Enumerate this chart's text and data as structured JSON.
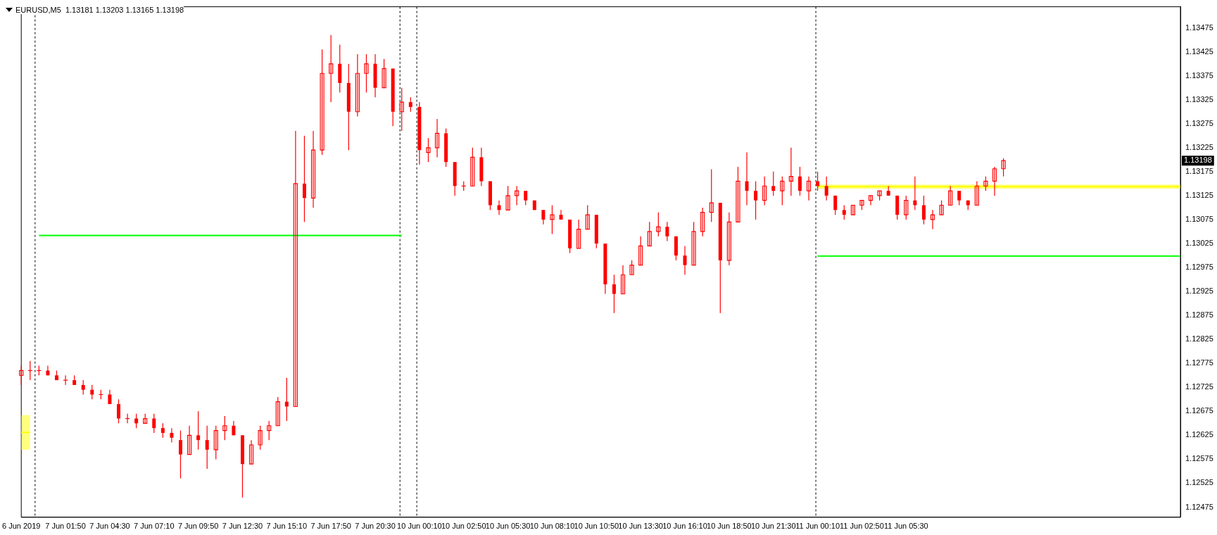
{
  "chart_data": {
    "type": "candlestick",
    "title": "EURUSD,M5  1.13181 1.13203 1.13165 1.13198",
    "color": "#ff0000",
    "categories": [
      "6 Jun 2019",
      null,
      null,
      null,
      null,
      "7 Jun 01:50",
      null,
      null,
      null,
      null,
      "7 Jun 04:30",
      null,
      null,
      null,
      null,
      "7 Jun 07:10",
      null,
      null,
      null,
      null,
      "7 Jun 09:50",
      null,
      null,
      null,
      null,
      "7 Jun 12:30",
      null,
      null,
      null,
      null,
      "7 Jun 15:10",
      null,
      null,
      null,
      null,
      "7 Jun 17:50",
      null,
      null,
      null,
      null,
      "7 Jun 20:30",
      null,
      null,
      null,
      null,
      "10 Jun 00:10",
      null,
      null,
      null,
      null,
      "10 Jun 02:50",
      null,
      null,
      null,
      null,
      "10 Jun 05:30",
      null,
      null,
      null,
      null,
      "10 Jun 08:10",
      null,
      null,
      null,
      null,
      "10 Jun 10:50",
      null,
      null,
      null,
      null,
      "10 Jun 13:30",
      null,
      null,
      null,
      null,
      "10 Jun 16:10",
      null,
      null,
      null,
      null,
      "10 Jun 18:50",
      null,
      null,
      null,
      null,
      "10 Jun 21:30",
      null,
      null,
      null,
      null,
      "11 Jun 00:10",
      null,
      null,
      null,
      null,
      "11 Jun 02:50",
      null,
      null,
      null,
      null,
      "11 Jun 05:30",
      null,
      null,
      null,
      null,
      null,
      null,
      null,
      null,
      null,
      null,
      null,
      null,
      null,
      null,
      null,
      null,
      null,
      null,
      null,
      null,
      null,
      null,
      null,
      null,
      null,
      null,
      null,
      null,
      null,
      null,
      null
    ],
    "ohlc": [
      [
        1.1275,
        1.1277,
        1.1273,
        1.1276
      ],
      [
        1.1276,
        1.1278,
        1.1274,
        1.1276
      ],
      [
        1.1276,
        1.1277,
        1.1275,
        1.1276
      ],
      [
        1.1276,
        1.1277,
        1.1275,
        1.1275
      ],
      [
        1.1275,
        1.1276,
        1.1274,
        1.1274
      ],
      [
        1.1274,
        1.1275,
        1.1273,
        1.1274
      ],
      [
        1.1274,
        1.1275,
        1.1273,
        1.1273
      ],
      [
        1.1273,
        1.1274,
        1.1271,
        1.1272
      ],
      [
        1.1272,
        1.1273,
        1.127,
        1.1271
      ],
      [
        1.1271,
        1.1272,
        1.127,
        1.1271
      ],
      [
        1.1271,
        1.1272,
        1.1269,
        1.1269
      ],
      [
        1.1269,
        1.127,
        1.1265,
        1.1266
      ],
      [
        1.1266,
        1.1267,
        1.1265,
        1.1266
      ],
      [
        1.1266,
        1.1267,
        1.1264,
        1.1265
      ],
      [
        1.1265,
        1.1267,
        1.1265,
        1.1266
      ],
      [
        1.1266,
        1.1267,
        1.1263,
        1.1264
      ],
      [
        1.1264,
        1.1265,
        1.1262,
        1.1263
      ],
      [
        1.1263,
        1.1264,
        1.1261,
        1.1262
      ],
      [
        1.12615,
        1.12635,
        1.12535,
        1.12585
      ],
      [
        1.12585,
        1.12645,
        1.12585,
        1.12625
      ],
      [
        1.12625,
        1.12675,
        1.12595,
        1.12615
      ],
      [
        1.12615,
        1.12645,
        1.12555,
        1.12595
      ],
      [
        1.12595,
        1.12645,
        1.12575,
        1.12635
      ],
      [
        1.12635,
        1.12665,
        1.12615,
        1.12645
      ],
      [
        1.12645,
        1.12655,
        1.12625,
        1.12625
      ],
      [
        1.12625,
        1.12625,
        1.12495,
        1.12565
      ],
      [
        1.12565,
        1.12615,
        1.12565,
        1.12605
      ],
      [
        1.12605,
        1.12645,
        1.12595,
        1.12635
      ],
      [
        1.12635,
        1.12655,
        1.12615,
        1.12645
      ],
      [
        1.12645,
        1.12705,
        1.12645,
        1.12695
      ],
      [
        1.12695,
        1.12745,
        1.12655,
        1.12685
      ],
      [
        1.12685,
        1.1326,
        1.12685,
        1.1315
      ],
      [
        1.1315,
        1.1325,
        1.1307,
        1.1312
      ],
      [
        1.1312,
        1.1326,
        1.131,
        1.1322
      ],
      [
        1.1322,
        1.1343,
        1.1321,
        1.1338
      ],
      [
        1.1338,
        1.1346,
        1.1332,
        1.134
      ],
      [
        1.134,
        1.1344,
        1.1334,
        1.1336
      ],
      [
        1.1336,
        1.134,
        1.1322,
        1.133
      ],
      [
        1.133,
        1.1342,
        1.1329,
        1.1338
      ],
      [
        1.1338,
        1.1342,
        1.1334,
        1.134
      ],
      [
        1.134,
        1.1342,
        1.1333,
        1.1335
      ],
      [
        1.1335,
        1.1341,
        1.1335,
        1.1339
      ],
      [
        1.1339,
        1.1339,
        1.1327,
        1.133
      ],
      [
        1.133,
        1.1335,
        1.1326,
        1.1332
      ],
      [
        1.1332,
        1.1333,
        1.133,
        1.1331
      ],
      [
        1.1331,
        1.1332,
        1.1319,
        1.1322
      ],
      [
        1.13215,
        1.13245,
        1.13195,
        1.13225
      ],
      [
        1.13225,
        1.13285,
        1.13205,
        1.13255
      ],
      [
        1.13255,
        1.13265,
        1.13185,
        1.13195
      ],
      [
        1.13195,
        1.13195,
        1.13125,
        1.13145
      ],
      [
        1.13145,
        1.13155,
        1.13135,
        1.13145
      ],
      [
        1.13145,
        1.13225,
        1.13145,
        1.13205
      ],
      [
        1.13205,
        1.13225,
        1.13145,
        1.13155
      ],
      [
        1.13155,
        1.13155,
        1.13095,
        1.13105
      ],
      [
        1.13105,
        1.13115,
        1.13085,
        1.13095
      ],
      [
        1.13095,
        1.13145,
        1.13095,
        1.13125
      ],
      [
        1.13125,
        1.13145,
        1.13105,
        1.13135
      ],
      [
        1.13135,
        1.13135,
        1.13105,
        1.13115
      ],
      [
        1.13115,
        1.13115,
        1.13095,
        1.13095
      ],
      [
        1.13095,
        1.13095,
        1.13065,
        1.13075
      ],
      [
        1.13075,
        1.13105,
        1.13045,
        1.13085
      ],
      [
        1.13085,
        1.13095,
        1.13075,
        1.13075
      ],
      [
        1.13075,
        1.13075,
        1.13005,
        1.13015
      ],
      [
        1.13015,
        1.13075,
        1.13015,
        1.13055
      ],
      [
        1.13055,
        1.13105,
        1.13055,
        1.13085
      ],
      [
        1.13085,
        1.13085,
        1.13015,
        1.13025
      ],
      [
        1.13025,
        1.13025,
        1.1292,
        1.1294
      ],
      [
        1.1294,
        1.1296,
        1.1288,
        1.1292
      ],
      [
        1.1292,
        1.1298,
        1.1292,
        1.1296
      ],
      [
        1.1296,
        1.1299,
        1.1296,
        1.1298
      ],
      [
        1.1298,
        1.1304,
        1.1298,
        1.1302
      ],
      [
        1.1302,
        1.1307,
        1.1302,
        1.1305
      ],
      [
        1.1305,
        1.1309,
        1.1304,
        1.1306
      ],
      [
        1.1306,
        1.1307,
        1.1303,
        1.1304
      ],
      [
        1.1304,
        1.1304,
        1.1299,
        1.13
      ],
      [
        1.13,
        1.1302,
        1.1296,
        1.1298
      ],
      [
        1.1298,
        1.1307,
        1.1298,
        1.1305
      ],
      [
        1.1305,
        1.131,
        1.1304,
        1.1309
      ],
      [
        1.1309,
        1.1318,
        1.1307,
        1.1311
      ],
      [
        1.1311,
        1.1311,
        1.1288,
        1.1299
      ],
      [
        1.1299,
        1.1309,
        1.1298,
        1.1307
      ],
      [
        1.1307,
        1.13185,
        1.1307,
        1.13155
      ],
      [
        1.13155,
        1.13215,
        1.13105,
        1.13135
      ],
      [
        1.13135,
        1.13155,
        1.13075,
        1.13115
      ],
      [
        1.13115,
        1.13165,
        1.13105,
        1.13145
      ],
      [
        1.13145,
        1.13175,
        1.13125,
        1.13135
      ],
      [
        1.13135,
        1.13165,
        1.13105,
        1.13155
      ],
      [
        1.13155,
        1.13225,
        1.13125,
        1.13165
      ],
      [
        1.13165,
        1.13185,
        1.13125,
        1.13135
      ],
      [
        1.13135,
        1.13165,
        1.13115,
        1.13155
      ],
      [
        1.13155,
        1.13175,
        1.13135,
        1.13145
      ],
      [
        1.13145,
        1.13165,
        1.13115,
        1.13125
      ],
      [
        1.13125,
        1.13125,
        1.13085,
        1.13095
      ],
      [
        1.13095,
        1.13105,
        1.13075,
        1.13085
      ],
      [
        1.13085,
        1.13105,
        1.13085,
        1.13105
      ],
      [
        1.13105,
        1.13115,
        1.13095,
        1.13115
      ],
      [
        1.13115,
        1.13125,
        1.13105,
        1.13125
      ],
      [
        1.13125,
        1.13135,
        1.13115,
        1.13135
      ],
      [
        1.13135,
        1.13145,
        1.13125,
        1.13125
      ],
      [
        1.13125,
        1.13125,
        1.13075,
        1.13085
      ],
      [
        1.13085,
        1.13125,
        1.13075,
        1.13115
      ],
      [
        1.13115,
        1.13165,
        1.13095,
        1.13105
      ],
      [
        1.13105,
        1.13125,
        1.13065,
        1.13075
      ],
      [
        1.13075,
        1.13095,
        1.13055,
        1.13085
      ],
      [
        1.13085,
        1.13115,
        1.13085,
        1.13105
      ],
      [
        1.13105,
        1.13145,
        1.13105,
        1.13135
      ],
      [
        1.13135,
        1.13135,
        1.13105,
        1.13115
      ],
      [
        1.13115,
        1.13115,
        1.13095,
        1.13105
      ],
      [
        1.13105,
        1.13155,
        1.13105,
        1.13145
      ],
      [
        1.13145,
        1.13165,
        1.13135,
        1.13155
      ],
      [
        1.13155,
        1.13185,
        1.13125,
        1.13181
      ],
      [
        1.13181,
        1.13203,
        1.13165,
        1.13198
      ],
      null,
      null,
      null,
      null,
      null,
      null,
      null,
      null,
      null,
      null,
      null,
      null,
      null,
      null,
      null,
      null,
      null,
      null,
      null,
      null
    ],
    "series": [
      {
        "type": "line",
        "color": "#ffff00",
        "values": [
          1.12631,
          1.12631,
          null,
          null,
          null,
          null,
          null,
          null,
          null,
          null,
          null,
          null,
          null,
          null,
          null,
          null,
          null,
          null,
          null,
          null,
          null,
          null,
          null,
          null,
          null,
          null,
          null,
          null,
          null,
          null,
          null,
          null,
          null,
          null,
          null,
          null,
          null,
          null,
          null,
          null,
          null,
          null,
          null,
          null,
          null,
          null,
          null,
          null,
          null,
          null,
          null,
          null,
          null,
          null,
          null,
          null,
          null,
          null,
          null,
          null,
          null,
          null,
          null,
          null,
          null,
          null,
          null,
          null,
          null,
          null,
          null,
          null,
          null,
          null,
          null,
          null,
          null,
          null,
          null,
          null,
          null,
          null,
          null,
          null,
          null,
          null,
          null,
          null,
          null,
          null,
          null,
          null,
          null,
          null,
          null,
          null,
          null,
          null,
          null,
          null,
          null,
          null,
          null,
          null,
          null,
          null,
          null,
          null,
          null,
          null,
          null,
          null,
          null,
          null,
          null,
          null,
          null,
          null,
          null,
          null,
          null,
          null,
          null,
          null,
          null,
          null,
          null,
          null,
          null,
          null,
          null,
          null
        ],
        "lower": [
          1.12595,
          1.12595,
          null,
          null,
          null,
          null,
          null,
          null,
          null,
          null,
          null,
          null,
          null,
          null,
          null,
          null,
          null,
          null,
          null,
          null,
          null,
          null,
          null,
          null,
          null,
          null,
          null,
          null,
          null,
          null,
          null,
          null,
          null,
          null,
          null,
          null,
          null,
          null,
          null,
          null,
          null,
          null,
          null,
          null,
          null,
          null,
          null,
          null,
          null,
          null,
          null,
          null,
          null,
          null,
          null,
          null,
          null,
          null,
          null,
          null,
          null,
          null,
          null,
          null,
          null,
          null,
          null,
          null,
          null,
          null,
          null,
          null,
          null,
          null,
          null,
          null,
          null,
          null,
          null,
          null,
          null,
          null,
          null,
          null,
          null,
          null,
          null,
          null,
          null,
          null,
          null,
          null,
          null,
          null,
          null,
          null,
          null,
          null,
          null,
          null,
          null,
          null,
          null,
          null,
          null,
          null,
          null,
          null,
          null,
          null,
          null,
          null,
          null,
          null,
          null,
          null,
          null,
          null,
          null,
          null,
          null,
          null,
          null,
          null,
          null,
          null,
          null,
          null,
          null,
          null,
          null,
          null
        ],
        "upper": [
          1.12667,
          1.12667,
          null,
          null,
          null,
          null,
          null,
          null,
          null,
          null,
          null,
          null,
          null,
          null,
          null,
          null,
          null,
          null,
          null,
          null,
          null,
          null,
          null,
          null,
          null,
          null,
          null,
          null,
          null,
          null,
          null,
          null,
          null,
          null,
          null,
          null,
          null,
          null,
          null,
          null,
          null,
          null,
          null,
          null,
          null,
          null,
          null,
          null,
          null,
          null,
          null,
          null,
          null,
          null,
          null,
          null,
          null,
          null,
          null,
          null,
          null,
          null,
          null,
          null,
          null,
          null,
          null,
          null,
          null,
          null,
          null,
          null,
          null,
          null,
          null,
          null,
          null,
          null,
          null,
          null,
          null,
          null,
          null,
          null,
          null,
          null,
          null,
          null,
          null,
          null,
          null,
          null,
          null,
          null,
          null,
          null,
          null,
          null,
          null,
          null,
          null,
          null,
          null,
          null,
          null,
          null,
          null,
          null,
          null,
          null,
          null,
          null,
          null,
          null,
          null,
          null,
          null,
          null,
          null,
          null,
          null,
          null,
          null,
          null,
          null,
          null,
          null,
          null,
          null,
          null,
          null,
          null
        ]
      },
      {
        "type": "line",
        "color": "#ffff00",
        "values": [
          null,
          null,
          null,
          null,
          null,
          null,
          null,
          null,
          null,
          null,
          null,
          null,
          null,
          null,
          null,
          null,
          null,
          null,
          null,
          null,
          null,
          null,
          null,
          null,
          null,
          null,
          null,
          null,
          null,
          null,
          null,
          null,
          null,
          null,
          null,
          null,
          null,
          null,
          null,
          null,
          null,
          null,
          null,
          null,
          null,
          null,
          null,
          null,
          null,
          null,
          null,
          null,
          null,
          null,
          null,
          null,
          null,
          null,
          null,
          null,
          null,
          null,
          null,
          null,
          null,
          null,
          null,
          null,
          null,
          null,
          null,
          null,
          null,
          null,
          null,
          null,
          null,
          null,
          null,
          null,
          null,
          null,
          null,
          null,
          null,
          null,
          null,
          null,
          null,
          null,
          1.13144,
          1.13144,
          1.13144,
          1.13144,
          1.13144,
          1.13144,
          1.13144,
          1.13144,
          1.13144,
          1.13144,
          1.13144,
          1.13144,
          1.13144,
          1.13144,
          1.13144,
          1.13144,
          1.13144,
          1.13144,
          1.13144,
          1.13144,
          1.13144,
          1.13144,
          1.13144,
          1.13144,
          1.13144,
          1.13144,
          1.13144,
          1.13144,
          1.13144,
          1.13144,
          1.13144,
          1.13144,
          1.13144,
          1.13144,
          1.13144,
          1.13144,
          1.13144,
          1.13144,
          1.13144,
          1.13144,
          1.13144,
          1.13144
        ],
        "lower": [
          null,
          null,
          null,
          null,
          null,
          null,
          null,
          null,
          null,
          null,
          null,
          null,
          null,
          null,
          null,
          null,
          null,
          null,
          null,
          null,
          null,
          null,
          null,
          null,
          null,
          null,
          null,
          null,
          null,
          null,
          null,
          null,
          null,
          null,
          null,
          null,
          null,
          null,
          null,
          null,
          null,
          null,
          null,
          null,
          null,
          null,
          null,
          null,
          null,
          null,
          null,
          null,
          null,
          null,
          null,
          null,
          null,
          null,
          null,
          null,
          null,
          null,
          null,
          null,
          null,
          null,
          null,
          null,
          null,
          null,
          null,
          null,
          null,
          null,
          null,
          null,
          null,
          null,
          null,
          null,
          null,
          null,
          null,
          null,
          null,
          null,
          null,
          null,
          null,
          null,
          1.13139,
          1.13139,
          1.13139,
          1.13139,
          1.13139,
          1.13139,
          1.13139,
          1.13139,
          1.13139,
          1.13139,
          1.13139,
          1.13139,
          1.13139,
          1.13139,
          1.13139,
          1.13139,
          1.13139,
          1.13139,
          1.13139,
          1.13139,
          1.13139,
          1.13139,
          1.13139,
          1.13139,
          1.13139,
          1.13139,
          1.13139,
          1.13139,
          1.13139,
          1.13139,
          1.13139,
          1.13139,
          1.13139,
          1.13139,
          1.13139,
          1.13139,
          1.13139,
          1.13139,
          1.13139,
          1.13139,
          1.13139,
          1.13139
        ],
        "upper": [
          null,
          null,
          null,
          null,
          null,
          null,
          null,
          null,
          null,
          null,
          null,
          null,
          null,
          null,
          null,
          null,
          null,
          null,
          null,
          null,
          null,
          null,
          null,
          null,
          null,
          null,
          null,
          null,
          null,
          null,
          null,
          null,
          null,
          null,
          null,
          null,
          null,
          null,
          null,
          null,
          null,
          null,
          null,
          null,
          null,
          null,
          null,
          null,
          null,
          null,
          null,
          null,
          null,
          null,
          null,
          null,
          null,
          null,
          null,
          null,
          null,
          null,
          null,
          null,
          null,
          null,
          null,
          null,
          null,
          null,
          null,
          null,
          null,
          null,
          null,
          null,
          null,
          null,
          null,
          null,
          null,
          null,
          null,
          null,
          null,
          null,
          null,
          null,
          null,
          null,
          1.13148,
          1.13148,
          1.13148,
          1.13148,
          1.13148,
          1.13148,
          1.13148,
          1.13148,
          1.13148,
          1.13148,
          1.13148,
          1.13148,
          1.13148,
          1.13148,
          1.13148,
          1.13148,
          1.13148,
          1.13148,
          1.13148,
          1.13148,
          1.13148,
          1.13148,
          1.13148,
          1.13148,
          1.13148,
          1.13148,
          1.13148,
          1.13148,
          1.13148,
          1.13148,
          1.13148,
          1.13148,
          1.13148,
          1.13148,
          1.13148,
          1.13148,
          1.13148,
          1.13148,
          1.13148,
          1.13148,
          1.13148,
          1.13148
        ]
      },
      {
        "type": "line",
        "color": "#00ff00",
        "values": [
          null,
          null,
          1.13042,
          1.13042,
          1.13042,
          1.13042,
          1.13042,
          1.13042,
          1.13042,
          1.13042,
          1.13042,
          1.13042,
          1.13042,
          1.13042,
          1.13042,
          1.13042,
          1.13042,
          1.13042,
          1.13042,
          1.13042,
          1.13042,
          1.13042,
          1.13042,
          1.13042,
          1.13042,
          1.13042,
          1.13042,
          1.13042,
          1.13042,
          1.13042,
          1.13042,
          1.13042,
          1.13042,
          1.13042,
          1.13042,
          1.13042,
          1.13042,
          1.13042,
          1.13042,
          1.13042,
          1.13042,
          1.13042,
          1.13042,
          1.13042,
          null,
          null,
          null,
          null,
          null,
          null,
          null,
          null,
          null,
          null,
          null,
          null,
          null,
          null,
          null,
          null,
          null,
          null,
          null,
          null,
          null,
          null,
          null,
          null,
          null,
          null,
          null,
          null,
          null,
          null,
          null,
          null,
          null,
          null,
          null,
          null,
          null,
          null,
          null,
          null,
          null,
          null,
          null,
          null,
          null,
          null,
          null,
          null,
          null,
          null,
          null,
          null,
          null,
          null,
          null,
          null,
          null,
          null,
          null,
          null,
          null,
          null,
          null,
          null,
          null,
          null,
          null,
          null,
          null,
          null,
          null,
          null,
          null,
          null,
          null,
          null,
          null,
          null,
          null,
          null,
          null,
          null,
          null,
          null,
          null,
          null,
          null,
          null
        ]
      },
      {
        "type": "line",
        "color": "#00ff00",
        "values": [
          null,
          null,
          null,
          null,
          null,
          null,
          null,
          null,
          null,
          null,
          null,
          null,
          null,
          null,
          null,
          null,
          null,
          null,
          null,
          null,
          null,
          null,
          null,
          null,
          null,
          null,
          null,
          null,
          null,
          null,
          null,
          null,
          null,
          null,
          null,
          null,
          null,
          null,
          null,
          null,
          null,
          null,
          null,
          null,
          null,
          null,
          null,
          null,
          null,
          null,
          null,
          null,
          null,
          null,
          null,
          null,
          null,
          null,
          null,
          null,
          null,
          null,
          null,
          null,
          null,
          null,
          null,
          null,
          null,
          null,
          null,
          null,
          null,
          null,
          null,
          null,
          null,
          null,
          null,
          null,
          null,
          null,
          null,
          null,
          null,
          null,
          null,
          null,
          null,
          null,
          1.12999,
          1.12999,
          1.12999,
          1.12999,
          1.12999,
          1.12999,
          1.12999,
          1.12999,
          1.12999,
          1.12999,
          1.12999,
          1.12999,
          1.12999,
          1.12999,
          1.12999,
          1.12999,
          1.12999,
          1.12999,
          1.12999,
          1.12999,
          1.12999,
          1.12999,
          1.12999,
          1.12999,
          1.12999,
          1.12999,
          1.12999,
          1.12999,
          1.12999,
          1.12999,
          1.12999,
          1.12999,
          1.12999,
          1.12999,
          1.12999,
          1.12999,
          1.12999,
          1.12999,
          1.12999,
          1.12999,
          1.12999,
          1.12999
        ]
      }
    ],
    "annotations": [
      "1.13198"
    ],
    "ylim": [
      1.12454,
      1.13519
    ],
    "yticks": [
      1.12475,
      1.12525,
      1.12575,
      1.12625,
      1.12675,
      1.12725,
      1.12775,
      1.12825,
      1.12875,
      1.12925,
      1.12975,
      1.13025,
      1.13075,
      1.13125,
      1.13175,
      1.13225,
      1.13275,
      1.13325,
      1.13375,
      1.13425,
      1.13475
    ],
    "grid": false,
    "legend": false
  }
}
